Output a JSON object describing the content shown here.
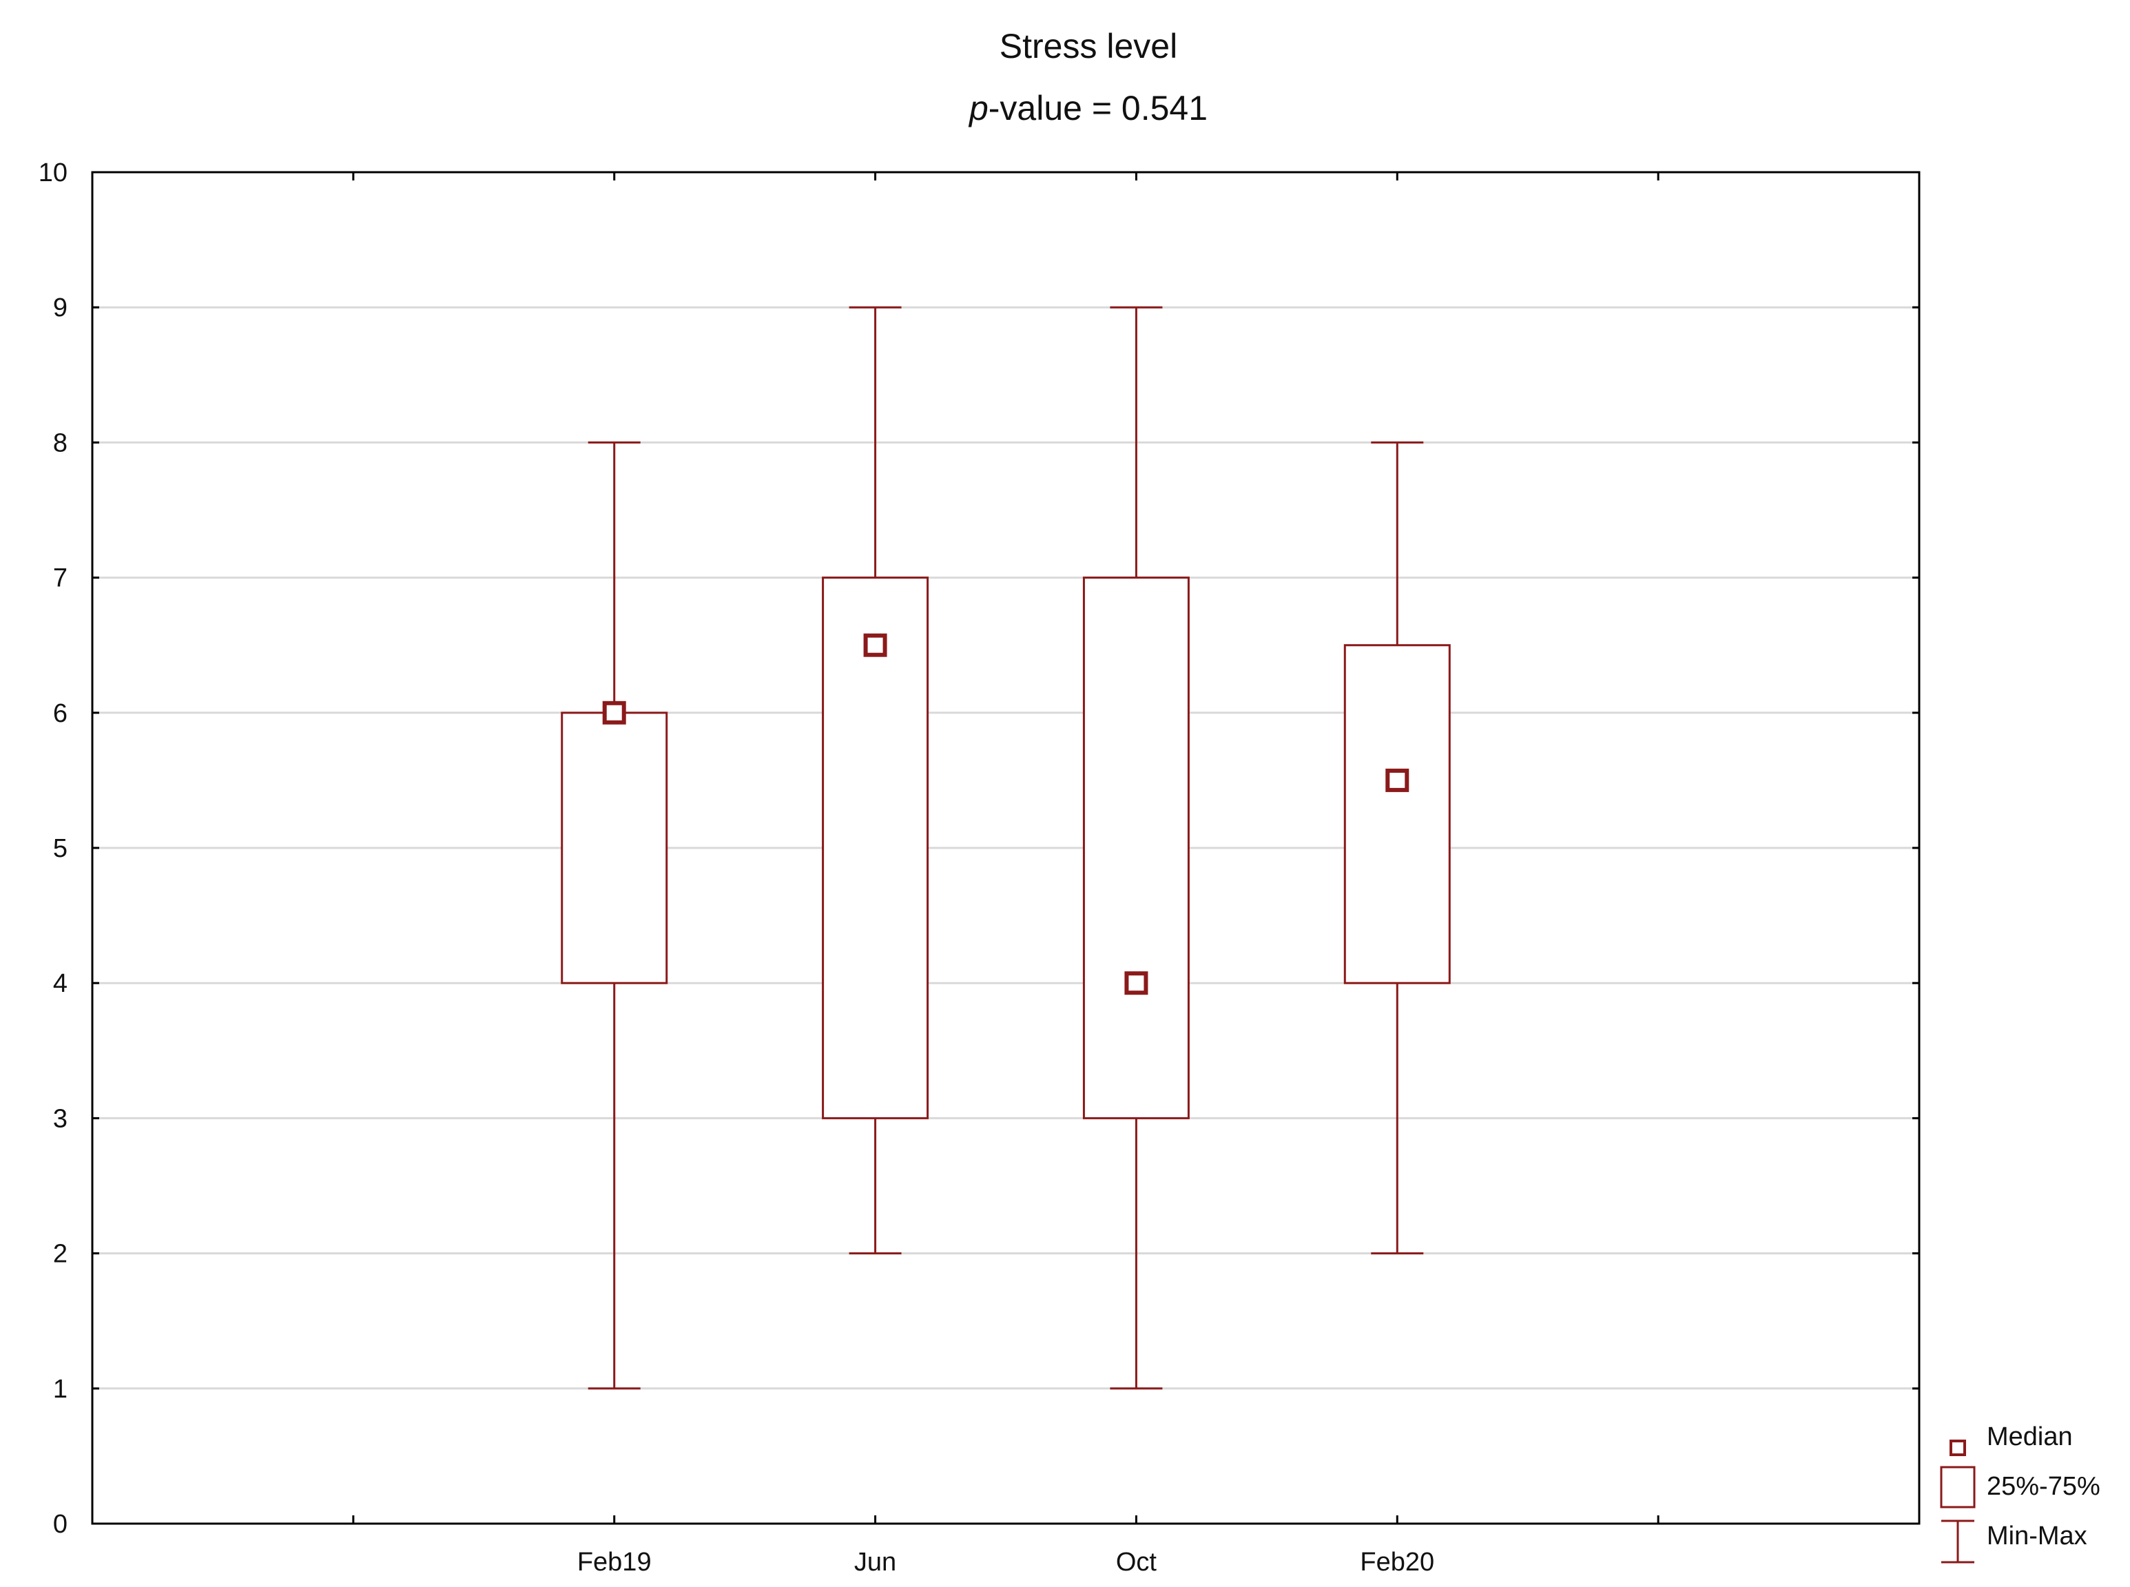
{
  "chart_data": {
    "type": "box",
    "title": "Stress level",
    "subtitle_prefix": "p",
    "subtitle_rest": "-value = 0.541",
    "xlabel": "",
    "ylabel": "",
    "categories": [
      "Feb19",
      "Jun",
      "Oct",
      "Feb20"
    ],
    "boxes": [
      {
        "category": "Feb19",
        "min": 1,
        "q1": 4,
        "median": 6,
        "q3": 6,
        "max": 8
      },
      {
        "category": "Jun",
        "min": 2,
        "q1": 3,
        "median": 6.5,
        "q3": 7,
        "max": 9
      },
      {
        "category": "Oct",
        "min": 1,
        "q1": 3,
        "median": 4,
        "q3": 7,
        "max": 9
      },
      {
        "category": "Feb20",
        "min": 2,
        "q1": 4,
        "median": 5.5,
        "q3": 6.5,
        "max": 8
      }
    ],
    "ylim": [
      0,
      10
    ],
    "yticks": [
      0,
      1,
      2,
      3,
      4,
      5,
      6,
      7,
      8,
      9,
      10
    ],
    "grid": true,
    "legend": {
      "placement": "bottom-right",
      "entries": [
        {
          "symbol": "median-square",
          "label": "Median"
        },
        {
          "symbol": "box",
          "label": "25%-75%"
        },
        {
          "symbol": "whisker",
          "label": "Min-Max"
        }
      ]
    },
    "colors": {
      "series": "#8b1a1a",
      "grid": "#d9d9d9",
      "axis": "#000000"
    }
  }
}
